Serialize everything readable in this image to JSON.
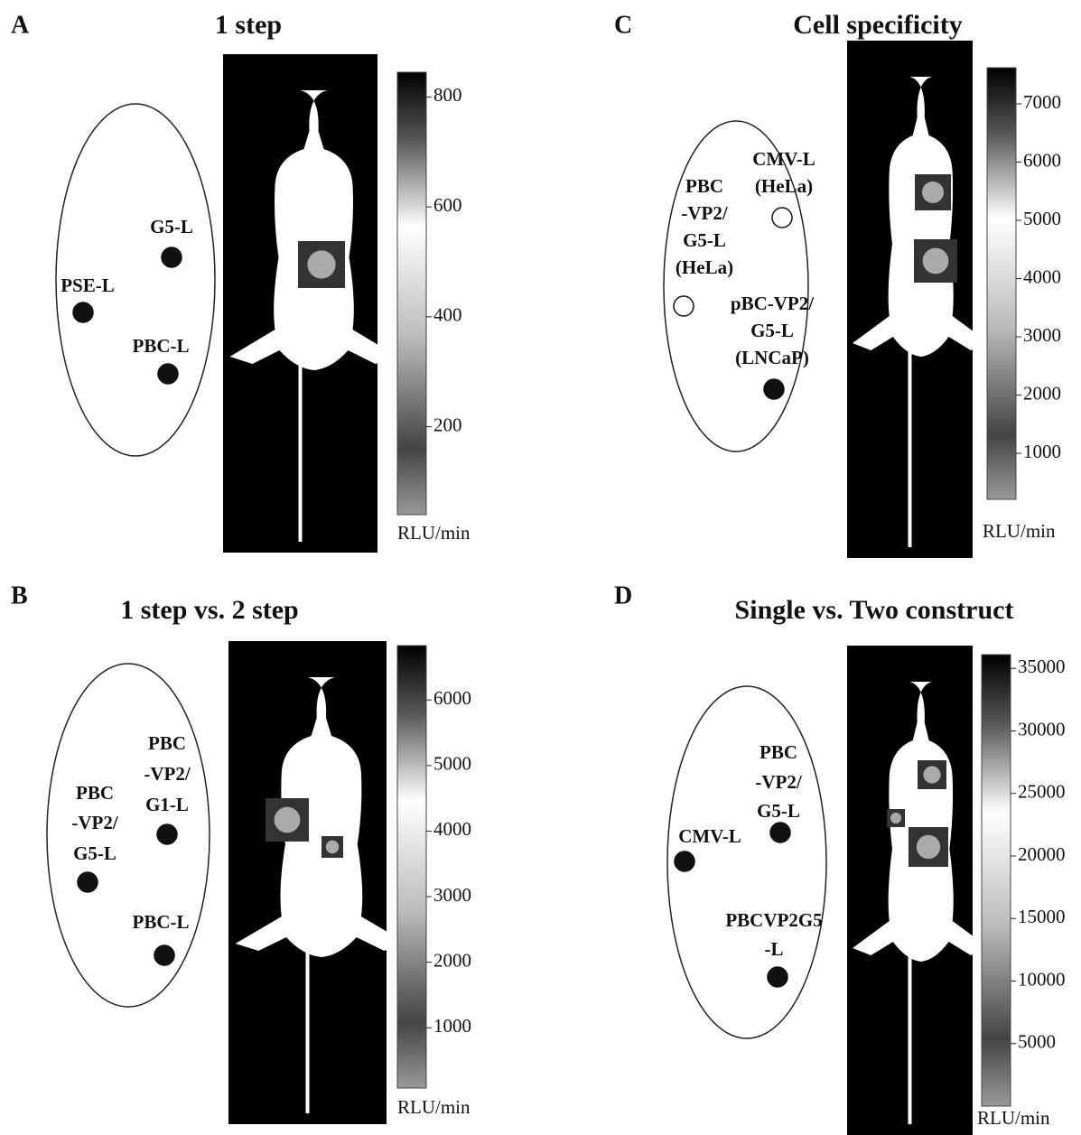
{
  "panels": [
    {
      "letter": "A",
      "title": "1 step",
      "sites": [
        {
          "label": [
            "G5-L"
          ],
          "filled": true
        },
        {
          "label": [
            "PSE-L"
          ],
          "filled": true
        },
        {
          "label": [
            "PBC-L"
          ],
          "filled": true
        }
      ],
      "colorbar": {
        "lim": [
          40,
          845
        ],
        "ticks": [
          200,
          400,
          600,
          800
        ],
        "unit": "RLU/min"
      }
    },
    {
      "letter": "B",
      "title": "1 step vs. 2 step",
      "sites": [
        {
          "label": [
            "PBC",
            "-VP2/",
            "G1-L"
          ],
          "filled": true
        },
        {
          "label": [
            "PBC",
            "-VP2/",
            "G5-L"
          ],
          "filled": true
        },
        {
          "label": [
            "PBC-L"
          ],
          "filled": true
        }
      ],
      "colorbar": {
        "lim": [
          80,
          6830
        ],
        "ticks": [
          1000,
          2000,
          3000,
          4000,
          5000,
          6000
        ],
        "unit": "RLU/min"
      }
    },
    {
      "letter": "C",
      "title": "Cell specificity",
      "sites": [
        {
          "label": [
            "PBC",
            "-VP2/",
            "G5-L",
            "(HeLa)"
          ],
          "filled": false
        },
        {
          "label": [
            "CMV-L",
            "(HeLa)"
          ],
          "filled": false
        },
        {
          "label": [
            "pBC-VP2/",
            "G5-L",
            "(LNCaP)"
          ],
          "filled": true
        }
      ],
      "colorbar": {
        "lim": [
          210,
          7620
        ],
        "ticks": [
          1000,
          2000,
          3000,
          4000,
          5000,
          6000,
          7000
        ],
        "unit": "RLU/min"
      }
    },
    {
      "letter": "D",
      "title": "Single vs. Two construct",
      "sites": [
        {
          "label": [
            "PBC",
            "-VP2/",
            "G5-L"
          ],
          "filled": true
        },
        {
          "label": [
            "CMV-L"
          ],
          "filled": true
        },
        {
          "label": [
            "PBCVP2G5",
            "-L"
          ],
          "filled": true
        }
      ],
      "colorbar": {
        "lim": [
          0,
          36100
        ],
        "ticks": [
          5000,
          10000,
          15000,
          20000,
          25000,
          30000,
          35000
        ],
        "unit": "RLU/min"
      }
    }
  ]
}
